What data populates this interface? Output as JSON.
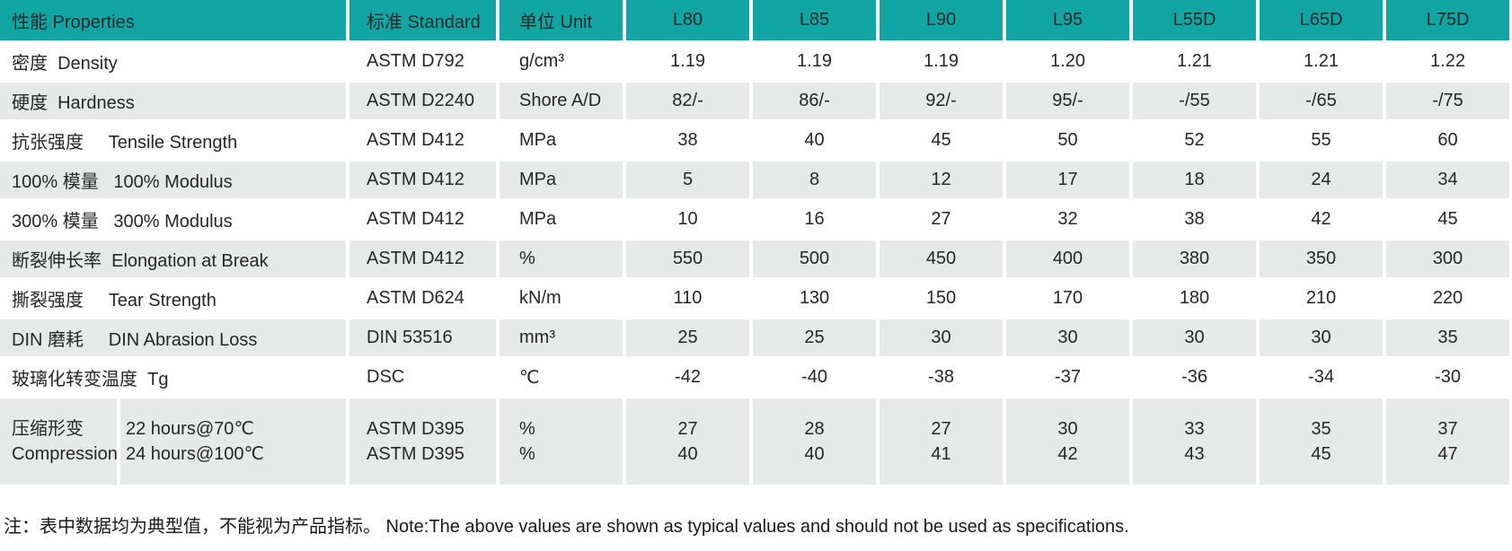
{
  "table": {
    "header": {
      "properties": "性能 Properties",
      "standard": "标准 Standard",
      "unit": "单位 Unit",
      "grades": [
        "L80",
        "L85",
        "L90",
        "L95",
        "L55D",
        "L65D",
        "L75D"
      ]
    },
    "rows": [
      {
        "property": "密度  Density",
        "standard": "ASTM D792",
        "unit": "g/cm³",
        "values": [
          "1.19",
          "1.19",
          "1.19",
          "1.20",
          "1.21",
          "1.21",
          "1.22"
        ]
      },
      {
        "property": "硬度  Hardness",
        "standard": "ASTM D2240",
        "unit": "Shore A/D",
        "values": [
          "82/-",
          "86/-",
          "92/-",
          "95/-",
          "-/55",
          "-/65",
          "-/75"
        ]
      },
      {
        "property": "抗张强度     Tensile Strength",
        "standard": "ASTM D412",
        "unit": "MPa",
        "values": [
          "38",
          "40",
          "45",
          "50",
          "52",
          "55",
          "60"
        ]
      },
      {
        "property": "100% 模量   100% Modulus",
        "standard": "ASTM D412",
        "unit": "MPa",
        "values": [
          "5",
          "8",
          "12",
          "17",
          "18",
          "24",
          "34"
        ]
      },
      {
        "property": "300% 模量   300% Modulus",
        "standard": "ASTM D412",
        "unit": "MPa",
        "values": [
          "10",
          "16",
          "27",
          "32",
          "38",
          "42",
          "45"
        ]
      },
      {
        "property": "断裂伸长率  Elongation at Break",
        "standard": "ASTM D412",
        "unit": "%",
        "values": [
          "550",
          "500",
          "450",
          "400",
          "380",
          "350",
          "300"
        ]
      },
      {
        "property": "撕裂强度     Tear Strength",
        "standard": "ASTM D624",
        "unit": "kN/m",
        "values": [
          "110",
          "130",
          "150",
          "170",
          "180",
          "210",
          "220"
        ]
      },
      {
        "property": "DIN 磨耗     DIN Abrasion Loss",
        "standard": "DIN 53516",
        "unit": "mm³",
        "values": [
          "25",
          "25",
          "30",
          "30",
          "30",
          "30",
          "35"
        ]
      },
      {
        "property": "玻璃化转变温度  Tg",
        "standard": "DSC",
        "unit": "℃",
        "values": [
          "-42",
          "-40",
          "-38",
          "-37",
          "-36",
          "-34",
          "-30"
        ]
      }
    ],
    "compression_row": {
      "property_lines": [
        "压缩形变",
        "Compression Set"
      ],
      "condition_lines": [
        "22 hours@70℃",
        "24 hours@100℃"
      ],
      "standard_lines": [
        "ASTM D395",
        "ASTM D395"
      ],
      "unit_lines": [
        "%",
        "%"
      ],
      "values": [
        [
          "27",
          "40"
        ],
        [
          "28",
          "40"
        ],
        [
          "27",
          "41"
        ],
        [
          "30",
          "42"
        ],
        [
          "33",
          "43"
        ],
        [
          "35",
          "45"
        ],
        [
          "37",
          "47"
        ]
      ]
    },
    "note": "注：表中数据均为典型值，不能视为产品指标。 Note:The above values are shown as typical values and should not be used as specifications."
  },
  "colors": {
    "header_bg": "#11a5a3",
    "row_alt_bg": "#e7e8e8",
    "text": "#262626"
  }
}
